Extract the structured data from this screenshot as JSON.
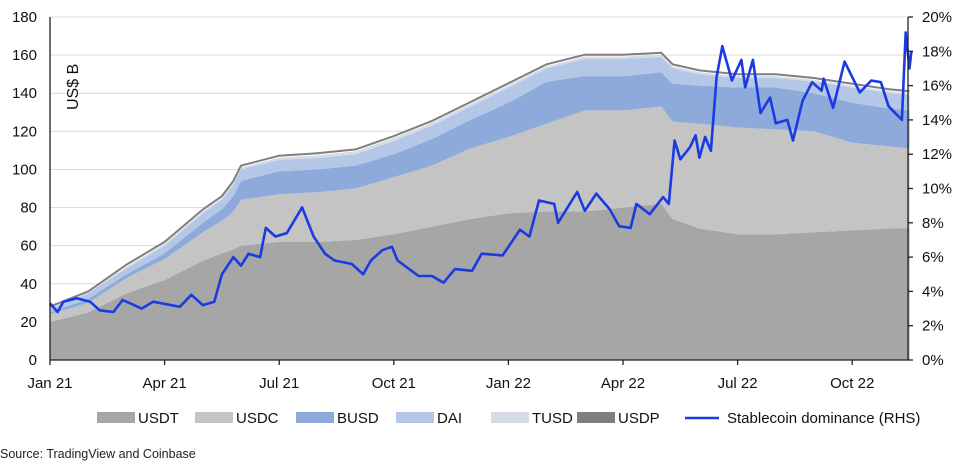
{
  "chart_data": {
    "type": "area",
    "title": "",
    "ylabel": "US$ B",
    "y2label": "",
    "ylim": [
      0,
      180
    ],
    "y2lim": [
      0,
      20
    ],
    "yticks": [
      "0",
      "20",
      "40",
      "60",
      "80",
      "100",
      "120",
      "140",
      "160",
      "180"
    ],
    "y2ticks": [
      "0%",
      "2%",
      "4%",
      "6%",
      "8%",
      "10%",
      "12%",
      "14%",
      "16%",
      "18%",
      "20%"
    ],
    "xtick_labels": [
      "Jan 21",
      "Apr 21",
      "Jul 21",
      "Oct 21",
      "Jan 22",
      "Apr 22",
      "Jul 22",
      "Oct 22"
    ],
    "xtick_months": [
      0,
      3,
      6,
      9,
      12,
      15,
      18,
      21
    ],
    "x_unit": "months since Jan 2021",
    "grid": true,
    "legend_position": "bottom",
    "x": [
      0,
      1,
      2,
      3,
      4,
      4.5,
      4.8,
      5,
      6,
      7,
      8,
      9,
      10,
      11,
      12,
      13,
      14,
      15,
      16,
      16.3,
      17,
      18,
      19,
      20,
      21,
      22,
      22.5
    ],
    "series": [
      {
        "name": "USDT",
        "color": "#a6a6a6",
        "values": [
          20,
          25,
          35,
          42,
          52,
          56,
          58,
          60,
          62,
          62,
          63,
          66,
          70,
          74,
          77,
          78,
          78,
          80,
          82,
          74,
          69,
          66,
          66,
          67,
          68,
          69,
          69
        ]
      },
      {
        "name": "USDC",
        "color": "#c4c4c4",
        "values": [
          4,
          5,
          8,
          11,
          15,
          17,
          20,
          24,
          25,
          26,
          27,
          30,
          32,
          37,
          40,
          46,
          53,
          51,
          51,
          51,
          55,
          56,
          55,
          53,
          46,
          43,
          42
        ]
      },
      {
        "name": "BUSD",
        "color": "#8eaadb",
        "values": [
          1,
          2,
          2,
          3,
          5,
          6,
          8,
          10,
          12,
          12,
          12,
          12,
          14,
          15,
          18,
          22,
          18,
          18,
          18,
          20,
          20,
          21,
          22,
          20,
          21,
          20,
          20
        ]
      },
      {
        "name": "DAI",
        "color": "#b4c7e7",
        "values": [
          2,
          3,
          3,
          4,
          5,
          5,
          6,
          6,
          6,
          6,
          6,
          7,
          7,
          7,
          8,
          7,
          9,
          9,
          8,
          8,
          6,
          5,
          5,
          6,
          8,
          8,
          8
        ]
      },
      {
        "name": "TUSD",
        "color": "#d6dce5",
        "values": [
          0.5,
          0.5,
          1,
          1,
          1,
          1,
          1,
          1,
          1.2,
          1.5,
          1.5,
          1.5,
          1.5,
          1.3,
          1.2,
          1.2,
          1.2,
          1.2,
          1.2,
          1.2,
          1,
          1,
          1,
          1,
          1,
          1,
          1
        ]
      },
      {
        "name": "USDP",
        "color": "#7f7f7f",
        "values": [
          0.5,
          0.5,
          1,
          1,
          1,
          1,
          1,
          1,
          1,
          1,
          1,
          1,
          1,
          1,
          1,
          1,
          1,
          1,
          1,
          1,
          1,
          1,
          1,
          1,
          1,
          1,
          1
        ]
      }
    ],
    "line_series": {
      "name": "Stablecoin dominance (RHS)",
      "color": "#1a3be0",
      "axis": "right",
      "x": [
        0,
        0.2,
        0.35,
        0.7,
        1.05,
        1.3,
        1.66,
        1.9,
        2.4,
        2.7,
        3.4,
        3.7,
        4.0,
        4.3,
        4.5,
        4.8,
        5.0,
        5.2,
        5.5,
        5.65,
        5.9,
        6.2,
        6.6,
        6.9,
        7.2,
        7.45,
        7.9,
        8.2,
        8.4,
        8.7,
        8.95,
        9.1,
        9.65,
        10.0,
        10.3,
        10.6,
        11.05,
        11.3,
        11.85,
        12.3,
        12.55,
        12.8,
        13.2,
        13.3,
        13.8,
        14.0,
        14.3,
        14.65,
        14.9,
        15.2,
        15.35,
        15.7,
        16.05,
        16.2,
        16.35,
        16.5,
        16.75,
        16.9,
        17.0,
        17.15,
        17.3,
        17.45,
        17.6,
        17.85,
        18.1,
        18.2,
        18.4,
        18.6,
        18.85,
        19.0,
        19.3,
        19.45,
        19.7,
        19.95,
        20.2,
        20.25,
        20.5,
        20.8,
        21.0,
        21.2,
        21.5,
        21.75,
        21.95,
        22.3,
        22.4,
        22.5,
        22.55
      ],
      "values": [
        3.3,
        2.8,
        3.4,
        3.6,
        3.4,
        2.9,
        2.8,
        3.5,
        3.0,
        3.4,
        3.1,
        3.8,
        3.2,
        3.4,
        5.0,
        6.0,
        5.5,
        6.2,
        6.0,
        7.7,
        7.2,
        7.4,
        8.9,
        7.2,
        6.2,
        5.8,
        5.6,
        5.0,
        5.8,
        6.4,
        6.6,
        5.8,
        4.9,
        4.9,
        4.5,
        5.3,
        5.2,
        6.2,
        6.1,
        7.6,
        7.2,
        9.3,
        9.1,
        8.0,
        9.8,
        8.7,
        9.7,
        8.8,
        7.8,
        7.7,
        9.1,
        8.5,
        9.5,
        9.1,
        12.8,
        11.7,
        12.4,
        13.1,
        11.8,
        13.0,
        12.2,
        16.5,
        18.3,
        16.3,
        17.5,
        15.9,
        17.5,
        14.4,
        15.3,
        13.8,
        14.0,
        12.8,
        15.1,
        16.2,
        15.7,
        16.4,
        14.7,
        17.4,
        16.5,
        15.6,
        16.3,
        16.2,
        14.8,
        14.0,
        19.1,
        17.0,
        18.0
      ]
    }
  },
  "source": "Source: TradingView and Coinbase"
}
